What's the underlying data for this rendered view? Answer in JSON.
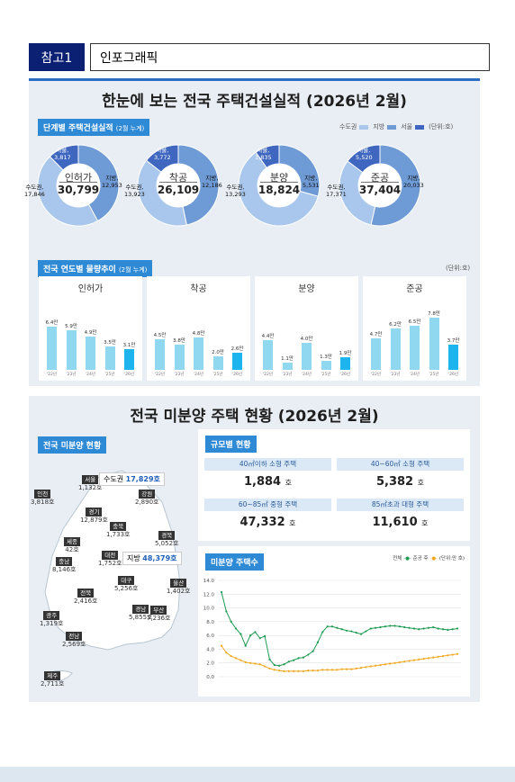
{
  "header": {
    "tag": "참고1",
    "title": "인포그래픽"
  },
  "section1": {
    "title": "한눈에 보는 전국 주택건설실적 (2026년 2월)",
    "stage_tag": "단계별 주택건설실적",
    "stage_note": "(2월 누계)",
    "legend": {
      "capital": "수도권",
      "local": "지방",
      "seoul": "서울",
      "unit": "(단위:호)"
    },
    "colors": {
      "capital": "#a9c7ec",
      "local": "#6e9ad6",
      "seoul": "#3f67c0",
      "accent": "#2f8ad6",
      "bar_highlight": "#1eb4ee",
      "bar_normal": "#8fd8f0"
    },
    "donuts": [
      {
        "name": "인허가",
        "total": "30,799",
        "seoul_label": "서울,",
        "seoul": "3,817",
        "capital_label": "수도권,",
        "capital": "17,846",
        "local_label": "지방,",
        "local": "12,953"
      },
      {
        "name": "착공",
        "total": "26,109",
        "seoul_label": "서울,",
        "seoul": "3,772",
        "capital_label": "수도권,",
        "capital": "13,923",
        "local_label": "지방,",
        "local": "12,186"
      },
      {
        "name": "분양",
        "total": "18,824",
        "seoul_label": "서울,",
        "seoul": "1,835",
        "capital_label": "수도권,",
        "capital": "13,293",
        "local_label": "지방,",
        "local": "5,531"
      },
      {
        "name": "준공",
        "total": "37,404",
        "seoul_label": "서울,",
        "seoul": "5,520",
        "capital_label": "수도권,",
        "capital": "17,371",
        "local_label": "지방,",
        "local": "20,033"
      }
    ],
    "trend_tag": "전국 연도별 물량추이",
    "trend_note": "(2월 누계)",
    "trend_unit": "(단위:호)"
  },
  "section2": {
    "title": "전국 미분양 주택 현황 (2026년 2월)",
    "map_tag": "전국 미분양 현황",
    "capital_box": {
      "label": "수도권",
      "value": "17,829호"
    },
    "local_box": {
      "label": "지방",
      "value": "48,379호"
    },
    "regions": [
      {
        "name": "서울",
        "value": "1,132호"
      },
      {
        "name": "인천",
        "value": "3,818호"
      },
      {
        "name": "경기",
        "value": "12,879호"
      },
      {
        "name": "강원",
        "value": "2,890호"
      },
      {
        "name": "충북",
        "value": "1,733호"
      },
      {
        "name": "세종",
        "value": "42호"
      },
      {
        "name": "충남",
        "value": "8,146호"
      },
      {
        "name": "대전",
        "value": "1,752호"
      },
      {
        "name": "경북",
        "value": "5,052호"
      },
      {
        "name": "대구",
        "value": "5,256호"
      },
      {
        "name": "울산",
        "value": "1,402호"
      },
      {
        "name": "전북",
        "value": "2,416호"
      },
      {
        "name": "경남",
        "value": "5,855호"
      },
      {
        "name": "부산",
        "value": "7,236호"
      },
      {
        "name": "광주",
        "value": "1,319호"
      },
      {
        "name": "전남",
        "value": "2,569호"
      },
      {
        "name": "제주",
        "value": "2,711호"
      }
    ],
    "size_tag": "규모별 현황",
    "sizes": [
      {
        "label": "40㎡이하 소형 주택",
        "value": "1,884",
        "unit": "호"
      },
      {
        "label": "40~60㎡ 소형 주택",
        "value": "5,382",
        "unit": "호"
      },
      {
        "label": "60~85㎡ 중형 주택",
        "value": "47,332",
        "unit": "호"
      },
      {
        "label": "85㎡초과 대형 주택",
        "value": "11,610",
        "unit": "호"
      }
    ],
    "line_tag": "미분양 주택수",
    "line_legend": {
      "total": "전체",
      "completed": "준공 후",
      "unit": "(단위:만 호)"
    }
  },
  "chart_data": [
    {
      "type": "bar",
      "title": "인허가",
      "categories": [
        "'22년",
        "'23년",
        "'24년",
        "'25년",
        "'26년"
      ],
      "values": [
        6.4,
        5.9,
        4.9,
        3.5,
        3.1
      ],
      "labels": [
        "6.4만",
        "5.9만",
        "4.9만",
        "3.5만",
        "3.1만"
      ]
    },
    {
      "type": "bar",
      "title": "착공",
      "categories": [
        "'22년",
        "'23년",
        "'24년",
        "'25년",
        "'26년"
      ],
      "values": [
        4.5,
        3.8,
        4.8,
        2.0,
        2.6
      ],
      "labels": [
        "4.5만",
        "3.8만",
        "4.8만",
        "2.0만",
        "2.6만"
      ]
    },
    {
      "type": "bar",
      "title": "분양",
      "categories": [
        "'22년",
        "'23년",
        "'24년",
        "'25년",
        "'26년"
      ],
      "values": [
        4.4,
        1.1,
        4.0,
        1.3,
        1.9
      ],
      "labels": [
        "4.4만",
        "1.1만",
        "4.0만",
        "1.3만",
        "1.9만"
      ]
    },
    {
      "type": "bar",
      "title": "준공",
      "categories": [
        "'22년",
        "'23년",
        "'24년",
        "'25년",
        "'26년"
      ],
      "values": [
        4.7,
        6.2,
        6.5,
        7.8,
        3.7
      ],
      "labels": [
        "4.7만",
        "6.2만",
        "6.5만",
        "7.8만",
        "3.7만"
      ]
    },
    {
      "type": "line",
      "ylim": [
        0,
        14
      ],
      "yticks": [
        "14.0",
        "12.0",
        "10.0",
        "8.0",
        "6.0",
        "4.0",
        "2.0",
        "0.0"
      ],
      "series": [
        {
          "name": "전체",
          "values": [
            12.3,
            9.5,
            8.0,
            7.0,
            6.2,
            4.5,
            6.0,
            6.5,
            5.6,
            5.9,
            2.5,
            1.7,
            1.6,
            1.8,
            2.2,
            2.4,
            2.7,
            2.8,
            3.2,
            3.7,
            5.0,
            6.5,
            7.3,
            7.3,
            7.1,
            6.9,
            6.7,
            6.6,
            6.4,
            6.2,
            6.6,
            7.0,
            7.1,
            7.2,
            7.3,
            7.4,
            7.4,
            7.3,
            7.2,
            7.1,
            7.0,
            6.9,
            7.0,
            7.1,
            7.2,
            7.0,
            6.9,
            6.8,
            6.9,
            7.0
          ]
        },
        {
          "name": "준공 후",
          "values": [
            4.5,
            3.5,
            3.0,
            2.7,
            2.4,
            2.1,
            2.0,
            1.9,
            1.8,
            1.5,
            1.2,
            1.0,
            0.9,
            0.8,
            0.8,
            0.8,
            0.8,
            0.8,
            0.9,
            0.9,
            0.9,
            1.0,
            1.0,
            1.0,
            1.0,
            1.1,
            1.1,
            1.1,
            1.2,
            1.3,
            1.4,
            1.5,
            1.6,
            1.7,
            1.8,
            1.9,
            2.0,
            2.1,
            2.2,
            2.3,
            2.4,
            2.5,
            2.6,
            2.7,
            2.8,
            2.9,
            3.0,
            3.1,
            3.2,
            3.3
          ]
        }
      ]
    }
  ]
}
